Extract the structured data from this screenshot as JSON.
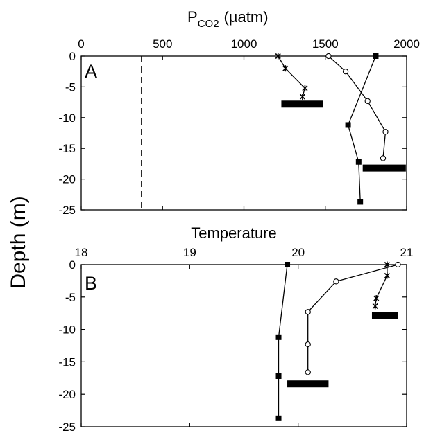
{
  "chart_data": [
    {
      "type": "line",
      "panel_label": "A",
      "x_axis_title_main": "P",
      "x_axis_title_sub": "CO2",
      "x_axis_title_unit": "(µatm)",
      "ylabel": "Depth (m)",
      "xlim": [
        0,
        2000
      ],
      "ylim": [
        -25,
        0
      ],
      "xticks": [
        0,
        500,
        1000,
        1500,
        2000
      ],
      "yticks": [
        0,
        -5,
        -10,
        -15,
        -20,
        -25
      ],
      "x_axis_position": "top",
      "grid": false,
      "reference_line": {
        "x": 370,
        "style": "dashed"
      },
      "series": [
        {
          "marker": "star",
          "x": [
            1210,
            1255,
            1375,
            1360
          ],
          "y": [
            0,
            -2,
            -5.2,
            -6.6
          ]
        },
        {
          "marker": "open-circle",
          "x": [
            1520,
            1625,
            1760,
            1870,
            1855
          ],
          "y": [
            0,
            -2.5,
            -7.3,
            -12.3,
            -16.6
          ]
        },
        {
          "marker": "filled-square",
          "x": [
            1810,
            1640,
            1705,
            1715
          ],
          "y": [
            0,
            -11.2,
            -17.2,
            -23.7
          ]
        }
      ],
      "bars": [
        {
          "x_start": 1230,
          "x_end": 1485,
          "y": -7.8
        },
        {
          "x_start": 1730,
          "x_end": 1995,
          "y": -18.2
        }
      ]
    },
    {
      "type": "line",
      "panel_label": "B",
      "xlabel": "Temperature",
      "ylabel": "Depth (m)",
      "xlim": [
        18,
        21
      ],
      "ylim": [
        -25,
        0
      ],
      "xticks": [
        18,
        19,
        20,
        21
      ],
      "yticks": [
        0,
        -5,
        -10,
        -15,
        -20,
        -25
      ],
      "x_axis_position": "top",
      "grid": false,
      "series": [
        {
          "marker": "filled-square",
          "x": [
            19.9,
            19.82,
            19.82,
            19.82
          ],
          "y": [
            0,
            -11.2,
            -17.2,
            -23.7
          ]
        },
        {
          "marker": "open-circle",
          "x": [
            20.92,
            20.35,
            20.09,
            20.09,
            20.09
          ],
          "y": [
            0,
            -2.6,
            -7.3,
            -12.3,
            -16.6
          ]
        },
        {
          "marker": "star",
          "x": [
            20.82,
            20.82,
            20.72,
            20.71
          ],
          "y": [
            0,
            -1.7,
            -5.2,
            -6.4
          ]
        }
      ],
      "bars": [
        {
          "x_start": 20.68,
          "x_end": 20.92,
          "y": -7.9
        },
        {
          "x_start": 19.9,
          "x_end": 20.28,
          "y": -18.4
        }
      ]
    }
  ]
}
